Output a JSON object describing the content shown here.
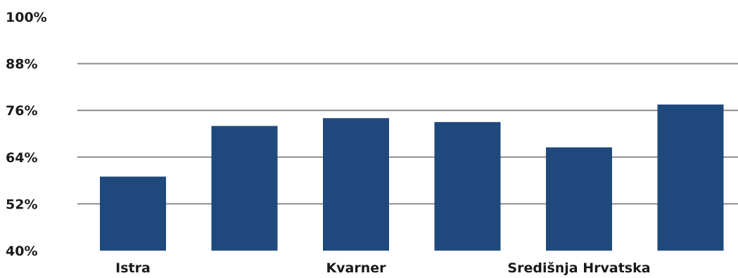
{
  "chart_data": {
    "type": "bar",
    "categories": [
      "Istra",
      "",
      "Kvarner",
      "",
      "Središnja Hrvatska",
      ""
    ],
    "values": [
      59,
      72,
      74,
      73,
      66.5,
      77.5
    ],
    "ylim": [
      40,
      100
    ],
    "yticks": [
      "40%",
      "52%",
      "64%",
      "76%",
      "88%",
      "100%"
    ],
    "ytick_values": [
      40,
      52,
      64,
      76,
      88,
      100
    ],
    "bar_color": "#1f497d",
    "grid": true,
    "gridline_color": "#8c8c8c"
  }
}
